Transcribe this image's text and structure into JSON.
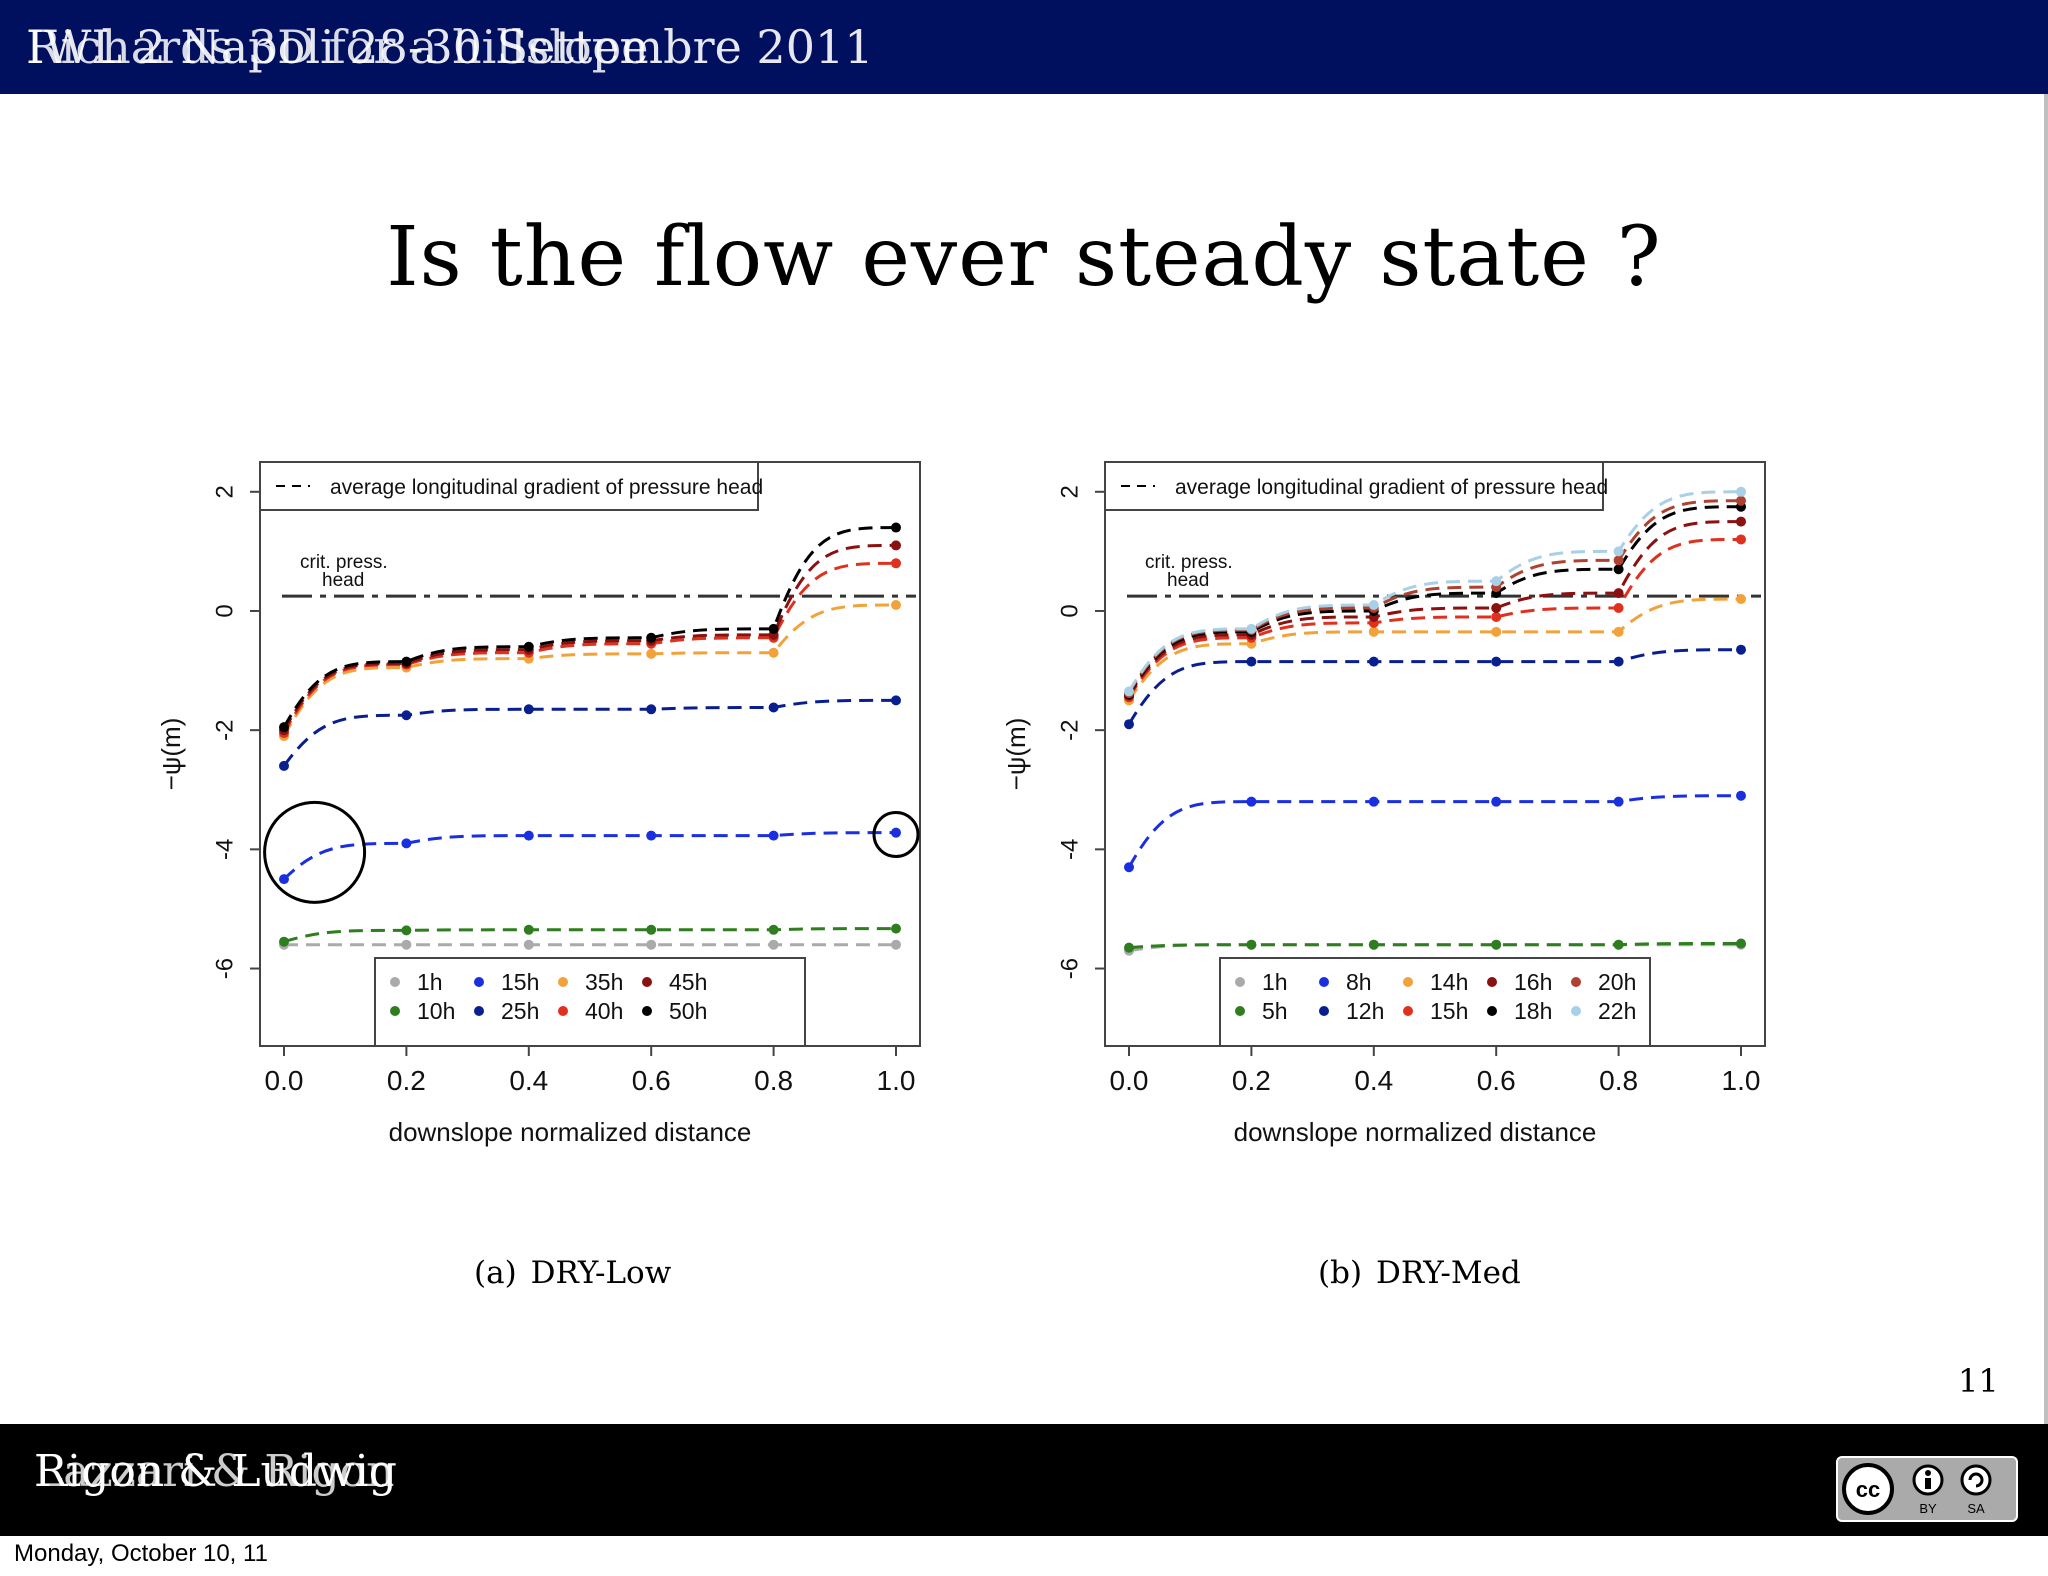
{
  "header": {
    "overlap_text_a": "IWL 2 Napoli 28-30 Settembre 2011",
    "overlap_text_b": "Richards 3D for a hillslope",
    "color": "#000f5e"
  },
  "slide": {
    "title": "Is the flow ever  steady state ?",
    "page_number": "11"
  },
  "chart_data": [
    {
      "type": "line",
      "caption_label": "(a)",
      "caption_name": "DRY-Low",
      "xlabel": "downslope normalized distance",
      "ylabel": "−ψ(m)",
      "xlim": [
        0.0,
        1.0
      ],
      "ylim": [
        -7.3,
        2.5
      ],
      "xticks": [
        "0.0",
        "0.2",
        "0.4",
        "0.6",
        "0.8",
        "1.0"
      ],
      "yticks": [
        "2",
        "0",
        "-2",
        "-4",
        "-6"
      ],
      "top_legend": "average longitudinal gradient of pressure head",
      "crit_label_line1": "crit. press.",
      "crit_label_line2": "head",
      "crit_value": 0.25,
      "series": [
        {
          "name": "1h",
          "color": "#aaaaaa",
          "values": [
            -5.6,
            -5.6,
            -5.6,
            -5.6,
            -5.6,
            -5.6
          ]
        },
        {
          "name": "10h",
          "color": "#2e7d1e",
          "values": [
            -5.55,
            -5.36,
            -5.35,
            -5.35,
            -5.35,
            -5.33
          ]
        },
        {
          "name": "15h",
          "color": "#1a2fe0",
          "values": [
            -4.5,
            -3.9,
            -3.77,
            -3.77,
            -3.77,
            -3.72
          ]
        },
        {
          "name": "25h",
          "color": "#0a1f8f",
          "values": [
            -2.6,
            -1.75,
            -1.65,
            -1.65,
            -1.62,
            -1.5
          ]
        },
        {
          "name": "35h",
          "color": "#f2a23a",
          "values": [
            -2.1,
            -0.95,
            -0.8,
            -0.72,
            -0.7,
            0.1
          ]
        },
        {
          "name": "40h",
          "color": "#e0301e",
          "values": [
            -2.05,
            -0.9,
            -0.7,
            -0.55,
            -0.45,
            0.8
          ]
        },
        {
          "name": "45h",
          "color": "#8b1010",
          "values": [
            -2.0,
            -0.88,
            -0.65,
            -0.5,
            -0.4,
            1.1
          ]
        },
        {
          "name": "50h",
          "color": "#000000",
          "values": [
            -1.95,
            -0.85,
            -0.6,
            -0.45,
            -0.3,
            1.4
          ]
        }
      ],
      "x": [
        0.0,
        0.2,
        0.4,
        0.6,
        0.8,
        1.0
      ]
    },
    {
      "type": "line",
      "caption_label": "(b)",
      "caption_name": "DRY-Med",
      "xlabel": "downslope normalized distance",
      "ylabel": "−ψ(m)",
      "xlim": [
        0.0,
        1.0
      ],
      "ylim": [
        -7.3,
        2.5
      ],
      "xticks": [
        "0.0",
        "0.2",
        "0.4",
        "0.6",
        "0.8",
        "1.0"
      ],
      "yticks": [
        "2",
        "0",
        "-2",
        "-4",
        "-6"
      ],
      "top_legend": "average longitudinal gradient of pressure head",
      "crit_label_line1": "crit. press.",
      "crit_label_line2": "head",
      "crit_value": 0.25,
      "series": [
        {
          "name": "1h",
          "color": "#aaaaaa",
          "values": [
            -5.7,
            -5.6,
            -5.6,
            -5.6,
            -5.6,
            -5.6
          ]
        },
        {
          "name": "5h",
          "color": "#2e7d1e",
          "values": [
            -5.65,
            -5.6,
            -5.6,
            -5.6,
            -5.6,
            -5.58
          ]
        },
        {
          "name": "8h",
          "color": "#1a2fe0",
          "values": [
            -4.3,
            -3.2,
            -3.2,
            -3.2,
            -3.2,
            -3.1
          ]
        },
        {
          "name": "12h",
          "color": "#0a1f8f",
          "values": [
            -1.9,
            -0.85,
            -0.85,
            -0.85,
            -0.85,
            -0.65
          ]
        },
        {
          "name": "14h",
          "color": "#f2a23a",
          "values": [
            -1.5,
            -0.55,
            -0.35,
            -0.35,
            -0.35,
            0.2
          ]
        },
        {
          "name": "15h",
          "color": "#e0301e",
          "values": [
            -1.45,
            -0.45,
            -0.2,
            -0.1,
            0.05,
            1.2
          ]
        },
        {
          "name": "16h",
          "color": "#8b1010",
          "values": [
            -1.42,
            -0.4,
            -0.1,
            0.05,
            0.3,
            1.5
          ]
        },
        {
          "name": "18h",
          "color": "#000000",
          "values": [
            -1.4,
            -0.35,
            0.0,
            0.3,
            0.7,
            1.75
          ]
        },
        {
          "name": "20h",
          "color": "#b04030",
          "values": [
            -1.38,
            -0.32,
            0.05,
            0.4,
            0.85,
            1.85
          ]
        },
        {
          "name": "22h",
          "color": "#a8d0e6",
          "values": [
            -1.35,
            -0.3,
            0.1,
            0.5,
            1.0,
            2.0
          ]
        }
      ],
      "x": [
        0.0,
        0.2,
        0.4,
        0.6,
        0.8,
        1.0
      ]
    }
  ],
  "footer": {
    "overlap_text_a": "Rigon & Ludwig",
    "overlap_text_b": "Lazzari & Rigon",
    "license_badge": "cc-by-sa-icon",
    "license_by": "BY",
    "license_sa": "SA",
    "license_cc": "cc"
  },
  "date": "Monday, October 10, 11"
}
